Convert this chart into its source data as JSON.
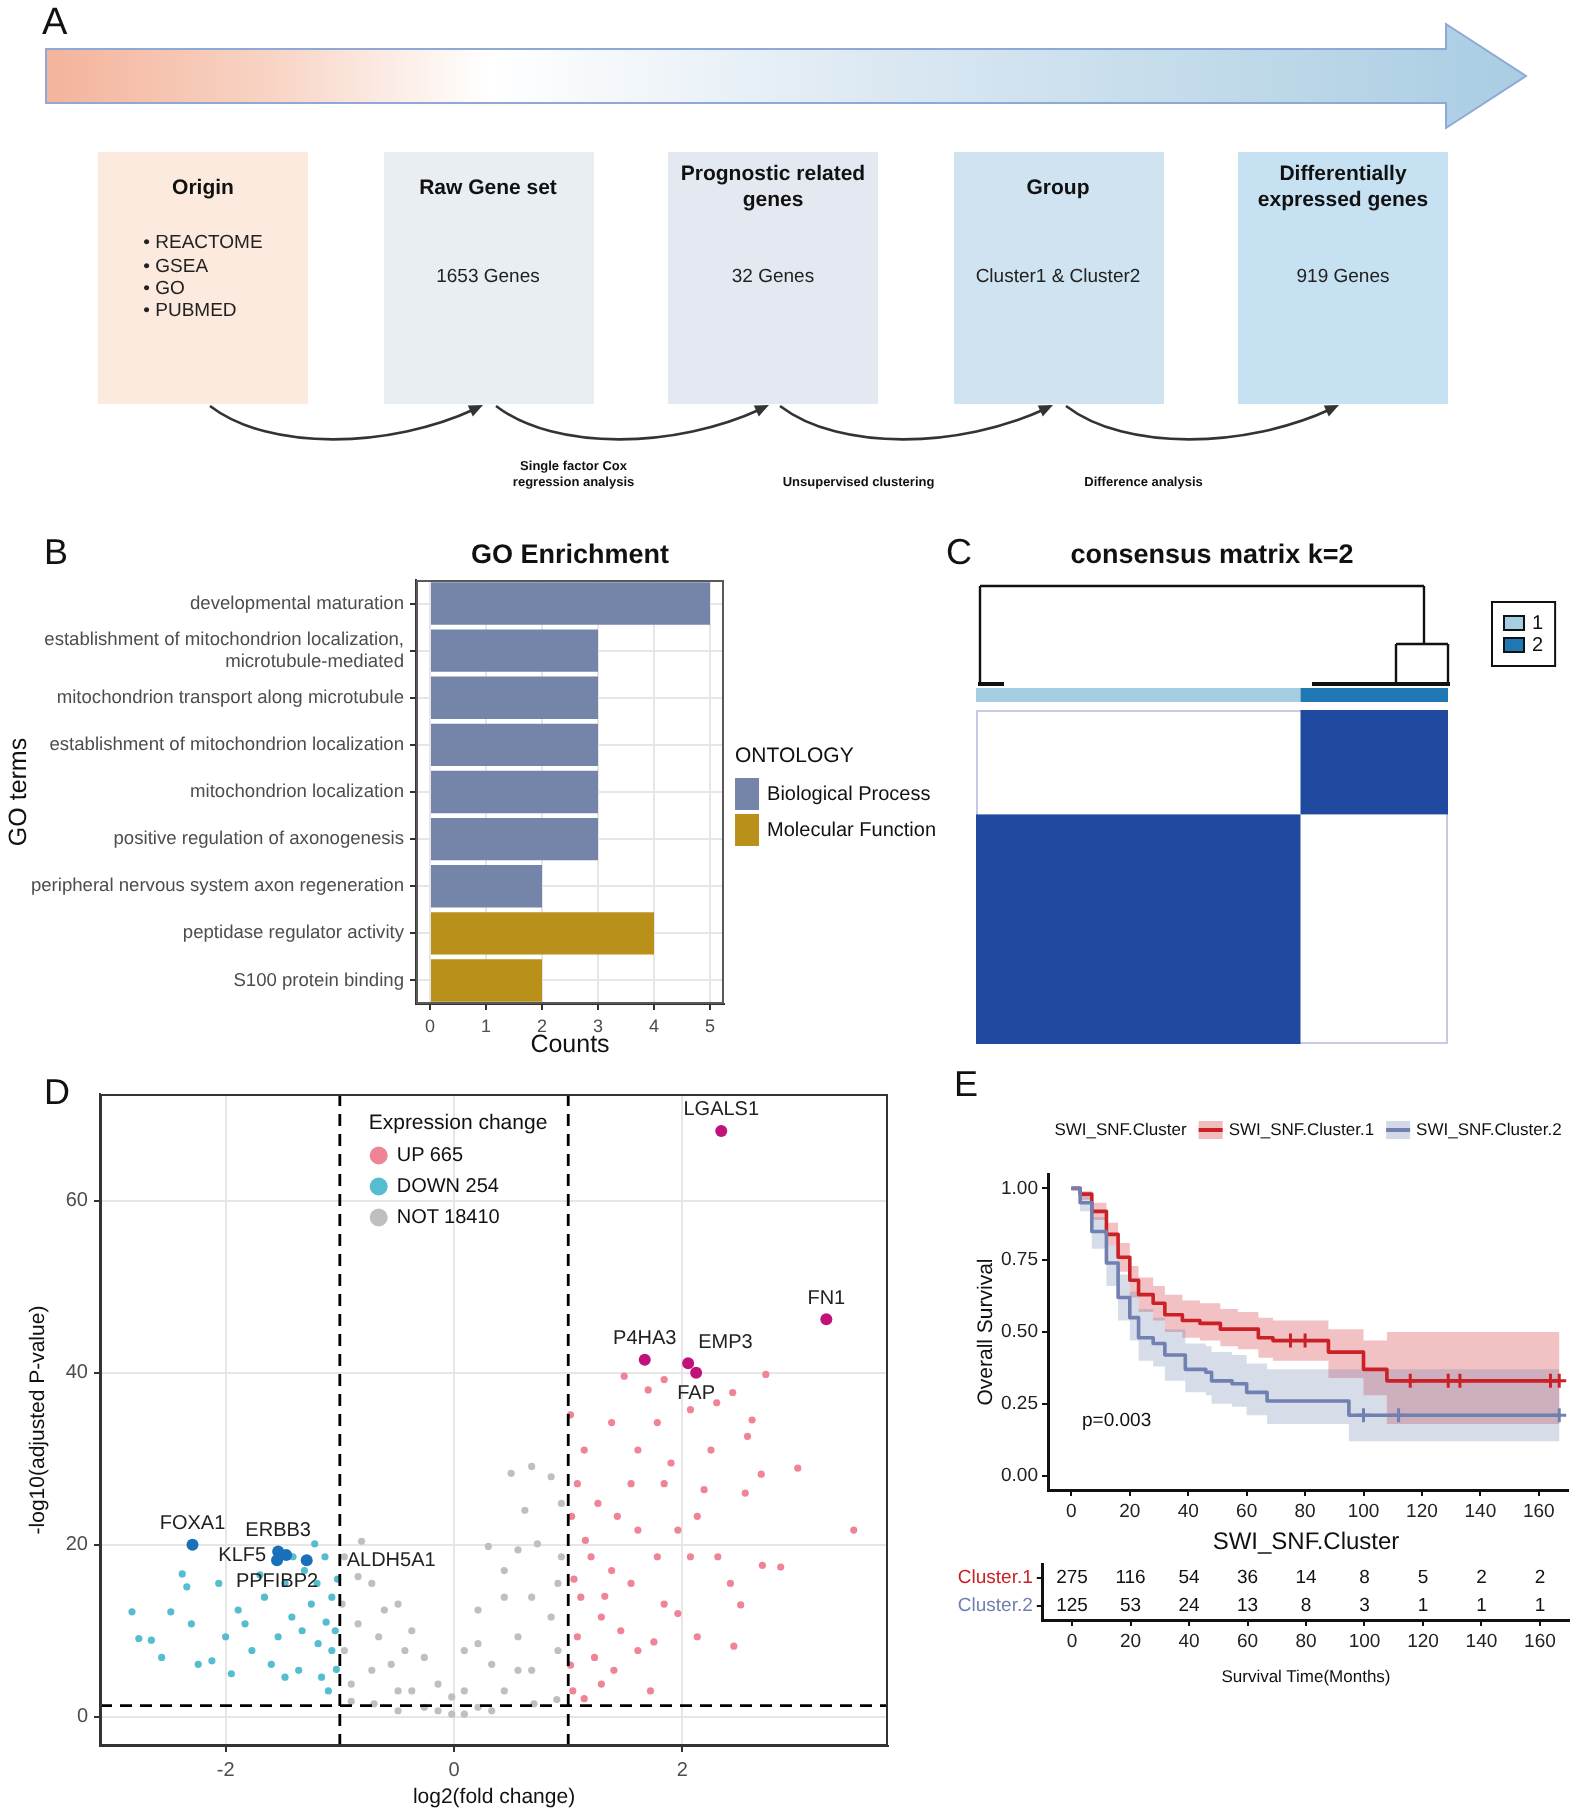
{
  "chart_data": [
    {
      "type": "other",
      "categories": [
        "Origin",
        "Raw Gene set",
        "Prognostic related genes",
        "Group",
        "Differentially expressed genes"
      ],
      "value_labels": [
        "• REACTOME\n• GSEA\n• GO\n• PUBMED",
        "1653 Genes",
        "32 Genes",
        "Cluster1 & Cluster2",
        "919 Genes"
      ],
      "colors": [
        "#fdeadf",
        "#e8eef2",
        "#e4e9f1",
        "#cfe4f0",
        "#c6e1f1"
      ],
      "annotations": [
        "A",
        "Single factor Cox regression analysis",
        "Unsupervised clustering",
        "Difference analysis"
      ]
    },
    {
      "type": "bar",
      "orientation": "horizontal",
      "title": "GO Enrichment",
      "xlabel": "Counts",
      "ylabel": "GO terms",
      "legend_title": "ONTOLOGY",
      "legend": "right",
      "grid": true,
      "categories": [
        "developmental maturation",
        "establishment of mitochondrion localization, microtubule-mediated",
        "mitochondrion transport along microtubule",
        "establishment of mitochondrion localization",
        "mitochondrion localization",
        "positive regulation of axonogenesis",
        "peripheral nervous system axon regeneration",
        "peptidase regulator activity",
        "S100 protein binding"
      ],
      "series": [
        {
          "name": "Biological Process",
          "color": "#7585aa",
          "values": [
            5,
            3,
            3,
            3,
            3,
            3,
            2,
            null,
            null
          ]
        },
        {
          "name": "Molecular Function",
          "color": "#b8901a",
          "values": [
            null,
            null,
            null,
            null,
            null,
            null,
            null,
            4,
            2
          ]
        }
      ],
      "xlim": [
        -0.25,
        5.25
      ],
      "xticks": [
        0,
        1,
        2,
        3,
        4,
        5
      ],
      "annotations": [
        "B"
      ]
    },
    {
      "type": "other",
      "title": "consensus matrix k=2",
      "legend": "top right",
      "series": [
        {
          "name": "1",
          "color": "#a6cee3"
        },
        {
          "name": "2",
          "color": "#1f78b4"
        }
      ],
      "annotations": [
        "C"
      ]
    },
    {
      "type": "scatter",
      "marker": "circle",
      "xlabel": "log2(fold change)",
      "ylabel": "-log10(adjusted P-value)",
      "legend_title": "Expression change",
      "legend": "top",
      "grid": true,
      "xlim": [
        -3.1,
        3.8
      ],
      "ylim": [
        -3.4,
        72.4
      ],
      "xticks": [
        -2,
        0,
        2
      ],
      "yticks": [
        0,
        20,
        40,
        60
      ],
      "series": [
        {
          "name": "UP 665",
          "color": "#ef8497",
          "x": [
            1.49,
            1.84,
            2.73,
            2.44,
            2.61,
            2.57,
            2.69,
            3.01,
            3.5,
            2.7,
            2.86,
            2.42,
            2.51,
            2.45,
            1.96,
            1.75,
            1.29,
            1.14,
            1.04,
            1.02,
            1.08,
            1.26,
            1.43,
            1.61,
            1.2,
            1.38,
            1.55,
            1.11,
            1.29,
            1.46,
            1.08,
            1.23,
            1.4,
            1.78,
            1.96,
            2.13,
            1.84,
            1.61,
            1.78,
            2.07,
            2.25,
            2.19,
            2.31,
            1.84,
            2.13,
            1.61,
            1.14,
            1.38,
            1.03,
            1.9,
            1.55,
            2.07,
            1.72,
            1.05,
            1.15,
            1.32,
            1.02,
            1.7,
            2.3,
            2.55
          ],
          "values": [
            39.6,
            39.2,
            39.8,
            37.7,
            34.5,
            32.6,
            28.2,
            28.9,
            21.7,
            17.6,
            17.4,
            15.5,
            13.0,
            8.2,
            12.0,
            8.7,
            3.8,
            2.1,
            3.0,
            35.1,
            27.1,
            24.8,
            23.3,
            21.7,
            18.6,
            17.0,
            15.5,
            13.9,
            11.6,
            10.0,
            9.3,
            6.9,
            5.4,
            18.6,
            21.7,
            23.3,
            27.1,
            31.0,
            34.2,
            35.7,
            31.0,
            26.4,
            18.6,
            13.1,
            9.3,
            7.7,
            31.0,
            34.2,
            23.3,
            29.5,
            27.1,
            18.6,
            3.0,
            16.0,
            20.5,
            14.0,
            6.0,
            38.0,
            36.5,
            26.0
          ]
        },
        {
          "name": "DOWN 254",
          "color": "#56bcd0",
          "x": [
            -2.82,
            -2.76,
            -2.56,
            -2.48,
            -2.38,
            -2.3,
            -2.24,
            -2.06,
            -2.0,
            -1.83,
            -1.77,
            -1.66,
            -1.54,
            -1.48,
            -1.42,
            -1.36,
            -1.31,
            -1.25,
            -1.19,
            -1.13,
            -1.1,
            -1.07,
            -1.07,
            -1.16,
            -1.33,
            -1.6,
            -1.89,
            -2.12,
            -2.65,
            -2.34,
            -1.22,
            -1.48,
            -1.04,
            -1.41,
            -1.02,
            -1.12,
            -1.2,
            -1.03,
            -1.7,
            -1.95
          ],
          "values": [
            12.2,
            9.1,
            6.9,
            12.2,
            16.6,
            10.8,
            6.1,
            15.5,
            9.3,
            10.8,
            7.7,
            13.9,
            9.3,
            15.5,
            11.6,
            5.4,
            17.0,
            13.1,
            8.5,
            18.6,
            3.0,
            13.9,
            7.7,
            4.6,
            10.0,
            6.1,
            12.4,
            6.5,
            8.9,
            15.1,
            20.1,
            4.6,
            10.0,
            18.6,
            16.0,
            11.0,
            15.5,
            5.5,
            16.5,
            5.0
          ]
        },
        {
          "name": "NOT 18410",
          "color": "#bfbfbf",
          "x": [
            -0.81,
            -0.96,
            -0.72,
            -0.49,
            0.3,
            0.5,
            0.68,
            0.85,
            0.94,
            0.62,
            0.73,
            0.44,
            0.21,
            0.09,
            -0.02,
            -0.14,
            -0.26,
            -0.37,
            -0.61,
            -0.84,
            -0.96,
            -0.9,
            -0.72,
            -0.49,
            -0.26,
            -0.02,
            0.21,
            0.44,
            0.68,
            0.91,
            0.85,
            0.56,
            0.33,
            0.91,
            0.68,
            0.94,
            0.56,
            -0.66,
            -0.43,
            -0.55,
            0.09,
            -0.14,
            -0.37,
            -0.98,
            -0.84,
            0.44,
            0.21,
            0.56,
            0.09,
            0.33,
            -0.49,
            -0.7,
            0.7,
            -0.9,
            0.9
          ],
          "values": [
            20.4,
            18.6,
            15.5,
            13.1,
            19.8,
            28.3,
            29.1,
            27.9,
            24.8,
            24.0,
            20.1,
            17.0,
            12.4,
            7.7,
            2.3,
            3.8,
            6.9,
            10.0,
            12.4,
            10.8,
            7.7,
            3.8,
            5.4,
            3.0,
            1.1,
            0.3,
            1.1,
            3.0,
            5.4,
            7.7,
            11.6,
            9.3,
            6.1,
            15.5,
            13.9,
            18.6,
            19.4,
            9.3,
            7.7,
            6.1,
            3.0,
            0.7,
            3.0,
            13.1,
            16.3,
            13.9,
            8.5,
            5.4,
            0.3,
            0.7,
            0.7,
            1.5,
            1.5,
            1.8,
            2.0
          ]
        },
        {
          "color": "#c0127a",
          "x": [
            2.34,
            3.26,
            1.67,
            2.05,
            2.12
          ],
          "values": [
            68.1,
            46.2,
            41.5,
            41.1,
            40.0
          ]
        },
        {
          "color": "#1a70b8",
          "x": [
            -2.29,
            -1.55,
            -1.54,
            -1.47,
            -1.29
          ],
          "values": [
            20.0,
            18.2,
            19.2,
            18.8,
            18.2
          ]
        }
      ],
      "ref_lines": [
        {
          "axis": "x",
          "value": -1,
          "line_style": "dashed",
          "color": "#000000"
        },
        {
          "axis": "x",
          "value": 1,
          "line_style": "dashed",
          "color": "#000000"
        },
        {
          "axis": "y",
          "value": 1.3,
          "line_style": "dashed",
          "color": "#000000"
        }
      ],
      "annotations": [
        "D",
        {
          "text": "LGALS1",
          "x": 2.34,
          "y": 68.1
        },
        {
          "text": "FN1",
          "x": 3.26,
          "y": 46.2
        },
        {
          "text": "P4HA3",
          "x": 1.67,
          "y": 41.5
        },
        {
          "text": "EMP3",
          "x": 2.05,
          "y": 41.1
        },
        {
          "text": "FAP",
          "x": 2.12,
          "y": 40.0
        },
        {
          "text": "FOXA1",
          "x": -2.29,
          "y": 20.0
        },
        {
          "text": "PPFIBP2",
          "x": -1.55,
          "y": 18.2
        },
        {
          "text": "ERBB3",
          "x": -1.54,
          "y": 19.2
        },
        {
          "text": "KLF5",
          "x": -1.47,
          "y": 18.8
        },
        {
          "text": "ALDH5A1",
          "x": -1.29,
          "y": 18.2
        }
      ]
    },
    {
      "type": "step",
      "ylabel": "Overall Survival",
      "legend_title": "SWI_SNF.Cluster",
      "legend": "top",
      "xlim": [
        -8,
        170
      ],
      "ylim": [
        -0.05,
        1.05
      ],
      "xticks": [
        0,
        20,
        40,
        60,
        80,
        100,
        120,
        140,
        160
      ],
      "yticks": [
        {
          "value": 0,
          "label": "0.00"
        },
        0.25,
        {
          "value": 0.5,
          "label": "0.50"
        },
        0.75,
        {
          "value": 1,
          "label": "1.00"
        }
      ],
      "series": [
        {
          "name": "SWI_SNF.Cluster.1",
          "color": "#cc2027",
          "x": [
            0,
            3,
            7,
            12,
            16,
            20,
            23,
            28,
            32,
            38,
            44,
            51,
            57,
            64,
            69,
            88,
            100,
            108,
            167
          ],
          "values": [
            1,
            0.98,
            0.92,
            0.84,
            0.76,
            0.68,
            0.63,
            0.6,
            0.56,
            0.54,
            0.53,
            0.51,
            0.51,
            0.48,
            0.47,
            0.43,
            0.37,
            0.33,
            0.33
          ],
          "lower": [
            1,
            0.96,
            0.89,
            0.8,
            0.71,
            0.62,
            0.57,
            0.54,
            0.5,
            0.48,
            0.47,
            0.45,
            0.44,
            0.41,
            0.4,
            0.34,
            0.28,
            0.18,
            0.18
          ],
          "upper": [
            1,
            0.99,
            0.95,
            0.88,
            0.81,
            0.73,
            0.69,
            0.66,
            0.63,
            0.61,
            0.6,
            0.58,
            0.57,
            0.55,
            0.54,
            0.51,
            0.47,
            0.5,
            0.5
          ]
        },
        {
          "name": "SWI_SNF.Cluster.2",
          "color": "#7080b0",
          "x": [
            0,
            3,
            7,
            12,
            16,
            20,
            23,
            28,
            32,
            39,
            46,
            48,
            55,
            60,
            67,
            95,
            167
          ],
          "values": [
            1,
            0.95,
            0.85,
            0.74,
            0.62,
            0.55,
            0.48,
            0.46,
            0.42,
            0.37,
            0.36,
            0.33,
            0.32,
            0.29,
            0.26,
            0.21,
            0.21
          ],
          "lower": [
            1,
            0.92,
            0.79,
            0.66,
            0.54,
            0.47,
            0.4,
            0.38,
            0.33,
            0.29,
            0.28,
            0.25,
            0.24,
            0.21,
            0.18,
            0.12,
            0.12
          ],
          "upper": [
            1,
            0.98,
            0.9,
            0.8,
            0.7,
            0.64,
            0.58,
            0.55,
            0.51,
            0.46,
            0.45,
            0.43,
            0.42,
            0.39,
            0.37,
            0.37,
            0.37
          ]
        },
        {
          "type": "scatter",
          "marker": "cross",
          "color": "#cc2027",
          "x": [
            75,
            80,
            116,
            129,
            133,
            164,
            167
          ],
          "values": [
            0.47,
            0.47,
            0.33,
            0.33,
            0.33,
            0.33,
            0.33
          ]
        },
        {
          "type": "scatter",
          "marker": "cross",
          "color": "#7080b0",
          "x": [
            100,
            112,
            167
          ],
          "values": [
            0.21,
            0.21,
            0.21
          ]
        }
      ],
      "annotations": [
        "E",
        "p=0.003"
      ]
    },
    {
      "type": "heatmap",
      "title": "SWI_SNF.Cluster",
      "xlabel": "Survival Time(Months)",
      "categories": [
        "0",
        "20",
        "40",
        "60",
        "80",
        "100",
        "120",
        "140",
        "160"
      ],
      "y_categories": [
        "Cluster.1",
        "Cluster.2"
      ],
      "colors": [
        "#cc2027",
        "#7080b0"
      ],
      "data_labels": true,
      "cells": [
        [
          275,
          116,
          54,
          36,
          14,
          8,
          5,
          2,
          2
        ],
        [
          125,
          53,
          24,
          13,
          8,
          3,
          1,
          1,
          1
        ]
      ]
    }
  ]
}
